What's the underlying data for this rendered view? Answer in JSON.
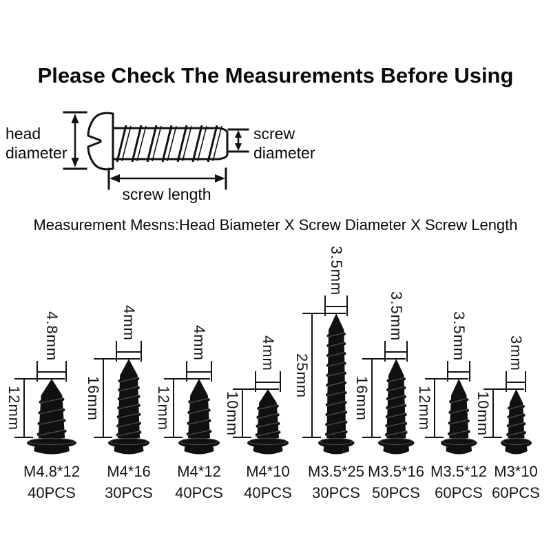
{
  "title": "Please Check The Measurements Before Using",
  "note": "Measurement Mesns:Head Biameter X Screw Diameter X Screw Length",
  "diagram": {
    "head_label": [
      "head",
      "diameter"
    ],
    "shaft_label": [
      "screw",
      "diameter"
    ],
    "length_label": "screw length"
  },
  "screws": [
    {
      "model": "M4.8*12",
      "qty": "40PCS",
      "dia_label": "4.8mm",
      "len_label": "12mm",
      "dia_mm": 4.8,
      "len_mm": 12
    },
    {
      "model": "M4*16",
      "qty": "30PCS",
      "dia_label": "4mm",
      "len_label": "16mm",
      "dia_mm": 4,
      "len_mm": 16
    },
    {
      "model": "M4*12",
      "qty": "40PCS",
      "dia_label": "4mm",
      "len_label": "12mm",
      "dia_mm": 4,
      "len_mm": 12
    },
    {
      "model": "M4*10",
      "qty": "40PCS",
      "dia_label": "4mm",
      "len_label": "10mm",
      "dia_mm": 4,
      "len_mm": 10
    },
    {
      "model": "M3.5*25",
      "qty": "30PCS",
      "dia_label": "3.5mm",
      "len_label": "25mm",
      "dia_mm": 3.5,
      "len_mm": 25
    },
    {
      "model": "M3.5*16",
      "qty": "50PCS",
      "dia_label": "3.5mm",
      "len_label": "16mm",
      "dia_mm": 3.5,
      "len_mm": 16
    },
    {
      "model": "M3.5*12",
      "qty": "60PCS",
      "dia_label": "3.5mm",
      "len_label": "12mm",
      "dia_mm": 3.5,
      "len_mm": 12
    },
    {
      "model": "M3*10",
      "qty": "60PCS",
      "dia_label": "3mm",
      "len_label": "10mm",
      "dia_mm": 3,
      "len_mm": 10
    }
  ],
  "colors": {
    "text": "#111111",
    "line": "#141414",
    "screw_body": "#101010",
    "background": "#ffffff"
  }
}
